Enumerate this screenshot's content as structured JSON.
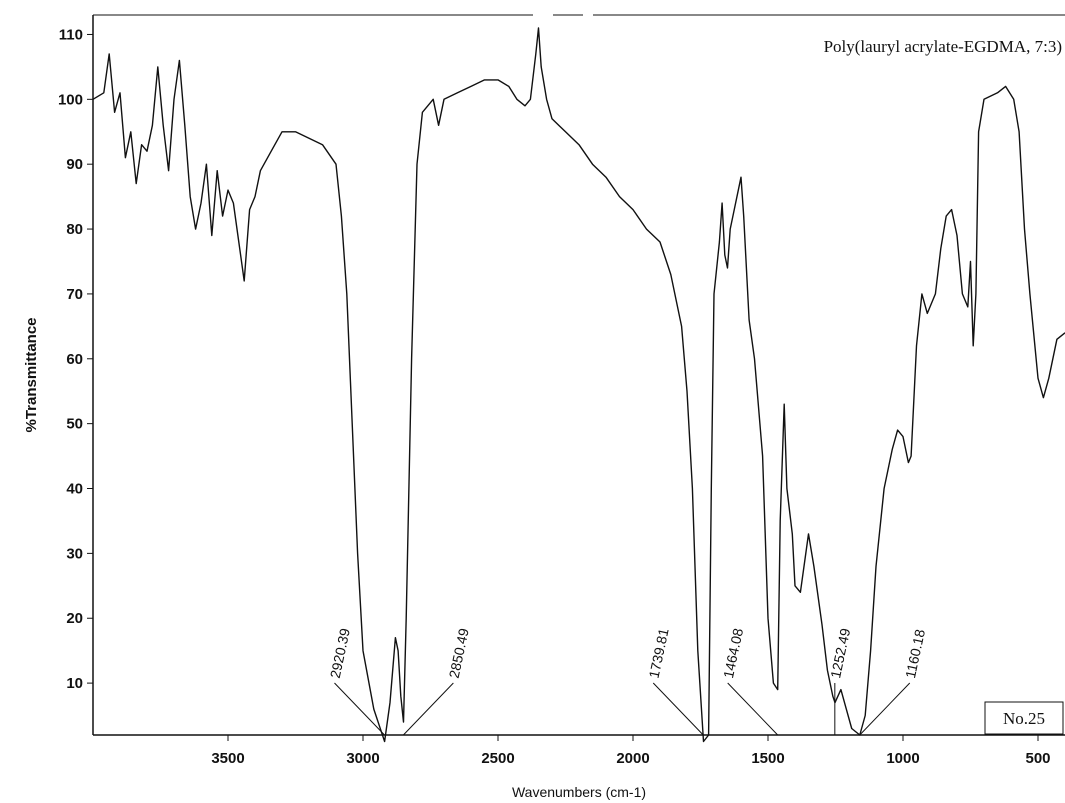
{
  "chart_data": {
    "type": "line",
    "title": "Poly(lauryl acrylate-EGDMA, 7:3)",
    "x_label": "Wavenumbers (cm-1)",
    "y_label": "%Transmittance",
    "note": "No.25",
    "color": "#111111",
    "xlim": [
      4000,
      400
    ],
    "ylim": [
      2,
      113
    ],
    "xticks": [
      3500,
      3000,
      2500,
      2000,
      1500,
      1000,
      500
    ],
    "yticks": [
      10,
      20,
      30,
      40,
      50,
      60,
      70,
      80,
      90,
      100,
      110
    ],
    "x": [
      4000,
      3960,
      3940,
      3920,
      3900,
      3880,
      3860,
      3840,
      3820,
      3800,
      3780,
      3760,
      3740,
      3720,
      3700,
      3680,
      3660,
      3640,
      3620,
      3600,
      3580,
      3560,
      3540,
      3520,
      3500,
      3480,
      3460,
      3440,
      3420,
      3400,
      3380,
      3340,
      3300,
      3250,
      3200,
      3150,
      3100,
      3080,
      3060,
      3040,
      3020,
      3000,
      2960,
      2920,
      2900,
      2880,
      2870,
      2860,
      2850,
      2840,
      2820,
      2800,
      2780,
      2760,
      2740,
      2720,
      2700,
      2650,
      2600,
      2550,
      2500,
      2460,
      2430,
      2400,
      2380,
      2360,
      2350,
      2340,
      2320,
      2300,
      2250,
      2200,
      2150,
      2100,
      2050,
      2000,
      1950,
      1900,
      1860,
      1820,
      1800,
      1780,
      1760,
      1739,
      1720,
      1710,
      1700,
      1680,
      1670,
      1660,
      1650,
      1640,
      1620,
      1600,
      1590,
      1570,
      1550,
      1520,
      1500,
      1480,
      1464,
      1455,
      1440,
      1430,
      1410,
      1400,
      1380,
      1360,
      1350,
      1330,
      1300,
      1280,
      1260,
      1252,
      1230,
      1210,
      1190,
      1160,
      1140,
      1120,
      1100,
      1070,
      1040,
      1020,
      1000,
      980,
      970,
      950,
      930,
      910,
      880,
      860,
      840,
      820,
      800,
      780,
      760,
      750,
      740,
      730,
      720,
      700,
      650,
      620,
      590,
      570,
      550,
      530,
      500,
      480,
      460,
      430,
      400
    ],
    "values": [
      100,
      101,
      107,
      98,
      101,
      91,
      95,
      87,
      93,
      92,
      96,
      105,
      96,
      89,
      100,
      106,
      96,
      85,
      80,
      84,
      90,
      79,
      89,
      82,
      86,
      84,
      78,
      72,
      83,
      85,
      89,
      92,
      95,
      95,
      94,
      93,
      90,
      82,
      70,
      50,
      30,
      15,
      6,
      1,
      7,
      17,
      15,
      8,
      4,
      20,
      60,
      90,
      98,
      99,
      100,
      96,
      100,
      101,
      102,
      103,
      103,
      102,
      100,
      99,
      100,
      107,
      111,
      105,
      100,
      97,
      95,
      93,
      90,
      88,
      85,
      83,
      80,
      78,
      73,
      65,
      55,
      40,
      15,
      1,
      2,
      40,
      70,
      78,
      84,
      76,
      74,
      80,
      84,
      88,
      82,
      66,
      60,
      45,
      20,
      10,
      9,
      35,
      53,
      40,
      33,
      25,
      24,
      30,
      33,
      28,
      19,
      12,
      8,
      7,
      9,
      6,
      3,
      2,
      5,
      15,
      28,
      40,
      46,
      49,
      48,
      44,
      45,
      62,
      70,
      67,
      70,
      77,
      82,
      83,
      79,
      70,
      68,
      75,
      62,
      70,
      95,
      100,
      101,
      102,
      100,
      95,
      80,
      70,
      57,
      54,
      57,
      63,
      64
    ],
    "annotations": [
      {
        "x": 2920.39,
        "text": "2920.39"
      },
      {
        "x": 2850.49,
        "text": "2850.49"
      },
      {
        "x": 1739.81,
        "text": "1739.81"
      },
      {
        "x": 1464.08,
        "text": "1464.08"
      },
      {
        "x": 1252.49,
        "text": "1252.49"
      },
      {
        "x": 1160.18,
        "text": "1160.18"
      }
    ]
  }
}
